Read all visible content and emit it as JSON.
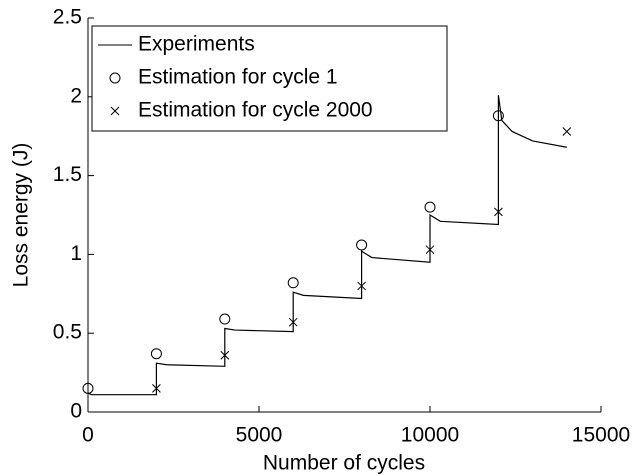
{
  "chart_data": {
    "type": "line",
    "xlabel": "Number of cycles",
    "ylabel": "Loss energy (J)",
    "xlim": [
      0,
      15000
    ],
    "xticks": [
      0,
      5000,
      10000,
      15000
    ],
    "ylim": [
      0,
      2.5
    ],
    "yticks": [
      0,
      0.5,
      1,
      1.5,
      2,
      2.5
    ],
    "legend": "top-left",
    "series": [
      {
        "name": "Experiments",
        "color": "#000000",
        "marker": "line",
        "x": [
          0,
          100,
          2000,
          2000,
          2300,
          4000,
          4000,
          4300,
          6000,
          6000,
          6300,
          8000,
          8000,
          8300,
          10000,
          10000,
          10300,
          12000,
          12000,
          12100,
          12400,
          13000,
          14000
        ],
        "y": [
          0.12,
          0.11,
          0.11,
          0.31,
          0.3,
          0.29,
          0.53,
          0.52,
          0.51,
          0.76,
          0.74,
          0.72,
          1.02,
          0.98,
          0.95,
          1.25,
          1.21,
          1.19,
          2.01,
          1.85,
          1.78,
          1.72,
          1.68
        ]
      },
      {
        "name": "Estimation for cycle 1",
        "color": "#000000",
        "marker": "circle",
        "x": [
          0,
          2000,
          4000,
          6000,
          8000,
          10000,
          12000
        ],
        "y": [
          0.15,
          0.37,
          0.59,
          0.82,
          1.06,
          1.3,
          1.88
        ]
      },
      {
        "name": "Estimation for cycle 2000",
        "color": "#000000",
        "marker": "cross",
        "x": [
          2000,
          4000,
          6000,
          8000,
          10000,
          12000,
          14000
        ],
        "y": [
          0.15,
          0.36,
          0.57,
          0.8,
          1.03,
          1.27,
          1.78
        ]
      }
    ]
  }
}
